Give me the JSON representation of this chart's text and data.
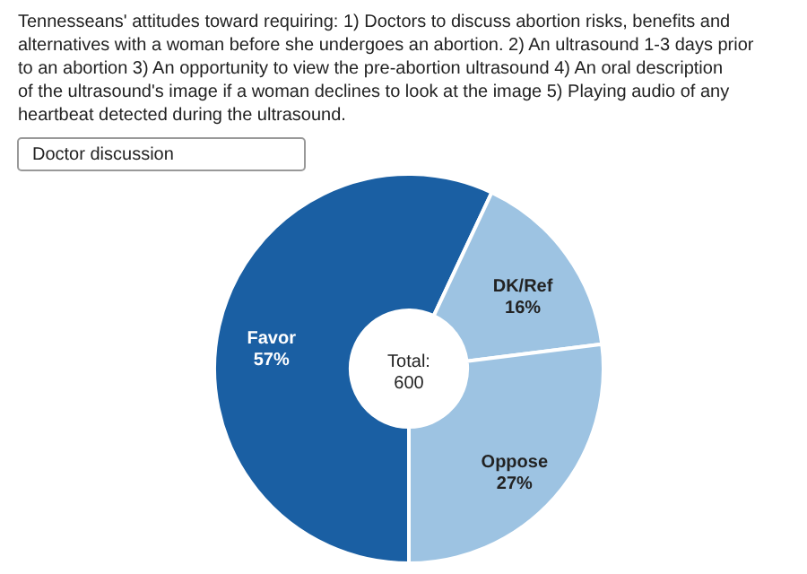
{
  "chart_data": {
    "type": "donut",
    "title": "Tennesseans' attitudes toward requiring: 1) Doctors to discuss abortion risks, benefits and alternatives with a woman before she undergoes an abortion. 2) An ultrasound 1-3 days prior to an abortion 3) An opportunity to view the pre-abortion ultrasound 4) An oral description of the ultrasound's image if a woman declines to look at the image 5) Playing audio of any heartbeat detected during the ultrasound.",
    "categories": [
      "Favor",
      "DK/Ref",
      "Oppose"
    ],
    "values": [
      57,
      16,
      27
    ],
    "value_labels": [
      "57%",
      "16%",
      "27%"
    ],
    "colors": [
      "#1a5fa3",
      "#9dc3e2",
      "#9dc3e2"
    ],
    "annotations": [
      "Doctor discussion",
      "Total:\n600"
    ]
  }
}
